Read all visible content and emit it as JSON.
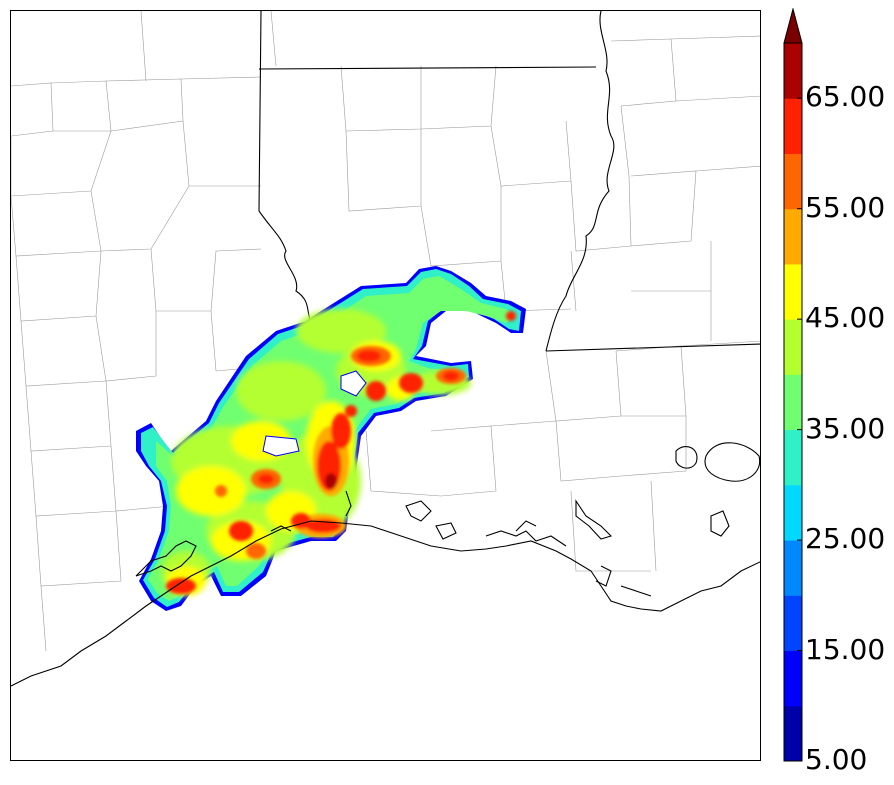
{
  "colorbar": {
    "levels": [
      5,
      10,
      15,
      20,
      25,
      30,
      35,
      40,
      45,
      50,
      55,
      60,
      65,
      70
    ],
    "colors": [
      "#0000aa",
      "#0000ff",
      "#0044ff",
      "#0088ff",
      "#00d8ff",
      "#30f0c8",
      "#70ff70",
      "#b4ff30",
      "#ffff00",
      "#ffaa00",
      "#ff6600",
      "#ff2200",
      "#aa0000"
    ],
    "extend_color": "#7a0000",
    "tick_labels": [
      "5.00",
      "15.00",
      "25.00",
      "35.00",
      "45.00",
      "55.00",
      "65.00"
    ]
  },
  "map": {
    "coast_color": "#000000",
    "state_color": "#000000",
    "county_color": "#9a9a9a"
  }
}
